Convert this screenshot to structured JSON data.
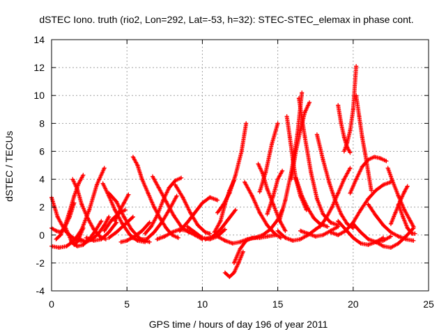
{
  "chart_data": {
    "type": "scatter",
    "title": "dSTEC Iono. truth (rio2, Lon=292, Lat=-53, h=32): STEC-STEC_elemax in phase cont.",
    "xlabel": "GPS time / hours of day 196 of year 2011",
    "ylabel": "dSTEC  / TECUs",
    "xlim": [
      0,
      25
    ],
    "ylim": [
      -4,
      14
    ],
    "x_ticks": [
      "0",
      "5",
      "10",
      "15",
      "20",
      "25"
    ],
    "y_ticks": [
      "-4",
      "-2",
      "0",
      "2",
      "4",
      "6",
      "8",
      "10",
      "12",
      "14"
    ],
    "grid": true,
    "marker": "+",
    "color": "#ff0000",
    "arcs": [
      {
        "x": [
          0.0,
          0.4,
          0.9,
          1.4,
          1.9,
          2.3
        ],
        "y": [
          2.7,
          1.3,
          0.3,
          -0.2,
          -0.4,
          -0.5
        ]
      },
      {
        "x": [
          0.0,
          0.5,
          1.0,
          1.5,
          2.0,
          2.5,
          3.0,
          3.5
        ],
        "y": [
          -0.8,
          -0.9,
          -0.8,
          -0.4,
          0.4,
          1.8,
          3.6,
          4.8
        ]
      },
      {
        "x": [
          0.0,
          0.3,
          0.6,
          0.9,
          1.2,
          1.5
        ],
        "y": [
          0.5,
          0.3,
          0.2,
          0.6,
          1.3,
          2.3
        ]
      },
      {
        "x": [
          0.3,
          0.6,
          0.9,
          1.2,
          1.5,
          1.8,
          2.1
        ],
        "y": [
          -0.3,
          0.0,
          0.7,
          1.7,
          2.8,
          3.7,
          4.3
        ]
      },
      {
        "x": [
          1.4,
          1.7,
          2.0,
          2.4,
          2.8,
          3.2,
          3.6
        ],
        "y": [
          4.0,
          3.3,
          2.2,
          1.2,
          0.4,
          -0.1,
          -0.3
        ]
      },
      {
        "x": [
          0.9,
          1.1,
          1.3,
          1.5,
          1.7,
          1.9,
          2.1
        ],
        "y": [
          0.6,
          0.1,
          -0.4,
          -0.7,
          -0.5,
          0.0,
          0.5
        ]
      },
      {
        "x": [
          1.9,
          2.3,
          2.7,
          3.1,
          3.5,
          3.8
        ],
        "y": [
          -0.3,
          -0.5,
          -0.3,
          0.1,
          0.7,
          1.3
        ]
      },
      {
        "x": [
          1.3,
          1.7,
          2.1,
          2.5,
          2.9,
          3.3
        ],
        "y": [
          -0.5,
          -0.8,
          -0.7,
          -0.3,
          0.3,
          1.0
        ]
      },
      {
        "x": [
          2.3,
          2.8,
          3.3,
          3.8,
          4.3
        ],
        "y": [
          -0.2,
          -0.4,
          -0.3,
          0.2,
          0.9
        ]
      },
      {
        "x": [
          3.4,
          3.8,
          4.2,
          4.7,
          5.2,
          5.7,
          6.2
        ],
        "y": [
          3.7,
          2.8,
          1.8,
          0.8,
          0.0,
          -0.4,
          -0.5
        ]
      },
      {
        "x": [
          3.5,
          4.0,
          4.5,
          4.9
        ],
        "y": [
          0.3,
          1.1,
          1.6,
          1.8
        ]
      },
      {
        "x": [
          3.8,
          4.3,
          4.8,
          5.3,
          5.9,
          6.5
        ],
        "y": [
          3.0,
          2.4,
          1.3,
          0.4,
          -0.3,
          -0.5
        ]
      },
      {
        "x": [
          3.8,
          4.3,
          4.8,
          5.4
        ],
        "y": [
          -0.2,
          0.2,
          0.7,
          1.3
        ]
      },
      {
        "x": [
          4.2,
          4.5,
          4.8,
          5.1
        ],
        "y": [
          1.0,
          1.7,
          2.3,
          2.9
        ]
      },
      {
        "x": [
          4.6,
          5.0,
          5.5,
          6.0,
          6.5
        ],
        "y": [
          -0.5,
          -0.4,
          -0.1,
          0.3,
          0.9
        ]
      },
      {
        "x": [
          5.4,
          5.7,
          6.0,
          6.4,
          6.8,
          7.2,
          7.6,
          8.0,
          8.4
        ],
        "y": [
          5.6,
          5.0,
          4.0,
          3.0,
          2.0,
          1.2,
          0.5,
          0.0,
          -0.2
        ]
      },
      {
        "x": [
          5.3,
          5.8,
          6.3,
          6.8,
          7.3,
          7.8,
          8.3
        ],
        "y": [
          -0.2,
          -0.3,
          -0.3,
          0.2,
          0.9,
          1.8,
          2.8
        ]
      },
      {
        "x": [
          6.2,
          6.6,
          7.0,
          7.4,
          7.8,
          8.2,
          8.6
        ],
        "y": [
          0.1,
          0.6,
          1.4,
          2.5,
          3.4,
          3.9,
          4.1
        ]
      },
      {
        "x": [
          6.7,
          7.1,
          7.6,
          8.1,
          8.6,
          9.1,
          9.6
        ],
        "y": [
          4.2,
          3.4,
          2.4,
          1.4,
          0.6,
          0.2,
          0.1
        ]
      },
      {
        "x": [
          8.2,
          8.7,
          9.2,
          9.7,
          10.2,
          10.5
        ],
        "y": [
          3.6,
          2.7,
          1.6,
          0.7,
          0.2,
          0.1
        ]
      },
      {
        "x": [
          7.0,
          7.5,
          8.0,
          8.5,
          9.0,
          9.5,
          10.0
        ],
        "y": [
          -0.3,
          -0.1,
          0.2,
          0.4,
          0.3,
          0.0,
          -0.3
        ]
      },
      {
        "x": [
          8.5,
          9.0,
          9.5,
          10.0,
          10.5,
          11.0
        ],
        "y": [
          0.3,
          0.9,
          1.6,
          2.3,
          2.7,
          2.5
        ]
      },
      {
        "x": [
          9.0,
          9.5,
          10.0,
          10.5,
          11.0,
          11.5
        ],
        "y": [
          0.6,
          0.2,
          -0.2,
          -0.3,
          -0.1,
          0.4
        ]
      },
      {
        "x": [
          10.2,
          10.7,
          11.2,
          11.7,
          12.2
        ],
        "y": [
          -0.3,
          -0.1,
          0.4,
          1.1,
          1.8
        ]
      },
      {
        "x": [
          11.0,
          11.4,
          11.8,
          12.2,
          12.6,
          12.9
        ],
        "y": [
          1.6,
          2.2,
          3.0,
          4.3,
          6.0,
          8.0
        ]
      },
      {
        "x": [
          10.8,
          11.2,
          11.5,
          11.8,
          12.1
        ],
        "y": [
          0.2,
          1.0,
          2.2,
          3.2,
          3.9
        ]
      },
      {
        "x": [
          11.5,
          11.8,
          12.1,
          12.4,
          12.7
        ],
        "y": [
          -2.7,
          -3.0,
          -2.7,
          -2.0,
          -1.2
        ]
      },
      {
        "x": [
          12.1,
          12.5,
          12.9,
          13.3,
          13.8,
          14.3,
          14.9
        ],
        "y": [
          -2.0,
          -1.0,
          -0.4,
          -0.2,
          -0.2,
          -0.1,
          0.0
        ]
      },
      {
        "x": [
          11.0,
          11.5,
          12.0,
          12.5,
          13.0,
          13.5,
          14.0,
          14.5,
          15.0,
          15.3
        ],
        "y": [
          -0.1,
          -0.4,
          -0.6,
          -0.5,
          -0.3,
          -0.2,
          0.0,
          0.4,
          1.1,
          1.8
        ]
      },
      {
        "x": [
          12.8,
          13.3,
          13.8,
          14.3,
          14.8,
          15.2
        ],
        "y": [
          3.8,
          2.8,
          1.6,
          0.7,
          0.1,
          -0.2
        ]
      },
      {
        "x": [
          13.7,
          14.0,
          14.3,
          14.7,
          15.1,
          15.5
        ],
        "y": [
          5.1,
          4.4,
          3.3,
          2.2,
          1.1,
          0.3
        ]
      },
      {
        "x": [
          13.8,
          14.2,
          14.6,
          15.0
        ],
        "y": [
          3.1,
          4.5,
          6.5,
          8.0
        ]
      },
      {
        "x": [
          14.3,
          14.7,
          15.0,
          15.3
        ],
        "y": [
          1.5,
          2.8,
          4.0,
          4.6
        ]
      },
      {
        "x": [
          15.6,
          15.8,
          16.0,
          16.2,
          16.5,
          16.9
        ],
        "y": [
          8.5,
          7.0,
          5.4,
          4.0,
          2.8,
          1.8
        ]
      },
      {
        "x": [
          15.1,
          15.5,
          15.9,
          16.3,
          16.6
        ],
        "y": [
          1.0,
          2.5,
          4.5,
          7.2,
          10.2
        ]
      },
      {
        "x": [
          15.9,
          16.2,
          16.5,
          16.8,
          17.1
        ],
        "y": [
          4.0,
          6.0,
          7.5,
          8.8,
          9.5
        ]
      },
      {
        "x": [
          16.2,
          16.6,
          17.0,
          17.4,
          17.8,
          18.3
        ],
        "y": [
          4.1,
          2.8,
          1.9,
          1.2,
          0.8,
          0.6
        ]
      },
      {
        "x": [
          15.0,
          15.5,
          16.0,
          16.5,
          17.0,
          17.5,
          18.0
        ],
        "y": [
          0.3,
          -0.2,
          -0.4,
          -0.3,
          0.0,
          0.4,
          0.8
        ]
      },
      {
        "x": [
          16.4,
          16.8,
          17.2,
          17.6,
          18.0,
          18.5,
          19.0
        ],
        "y": [
          9.8,
          7.0,
          4.5,
          2.6,
          1.5,
          0.9,
          0.7
        ]
      },
      {
        "x": [
          17.6,
          18.0,
          18.4,
          18.8,
          19.2,
          19.6,
          20.0
        ],
        "y": [
          7.2,
          5.4,
          3.8,
          2.5,
          1.5,
          0.8,
          0.5
        ]
      },
      {
        "x": [
          17.8,
          18.2,
          18.6,
          19.0,
          19.4,
          19.8
        ],
        "y": [
          0.6,
          1.2,
          2.0,
          3.0,
          4.0,
          4.8
        ]
      },
      {
        "x": [
          16.5,
          17.0,
          17.5,
          18.0,
          18.5,
          19.0
        ],
        "y": [
          0.3,
          0.1,
          -0.1,
          0.0,
          0.3,
          0.6
        ]
      },
      {
        "x": [
          19.0,
          19.2,
          19.4,
          19.6,
          19.8
        ],
        "y": [
          9.3,
          8.0,
          7.0,
          6.3,
          5.9
        ]
      },
      {
        "x": [
          19.4,
          19.6,
          19.8,
          20.0,
          20.2
        ],
        "y": [
          6.0,
          6.6,
          7.5,
          9.0,
          12.1
        ]
      },
      {
        "x": [
          20.2,
          20.4,
          20.6,
          20.8,
          21.0,
          21.2
        ],
        "y": [
          10.0,
          8.5,
          7.0,
          5.8,
          4.5,
          3.2
        ]
      },
      {
        "x": [
          19.8,
          20.2,
          20.6,
          21.0,
          21.4,
          21.8,
          22.2
        ],
        "y": [
          3.0,
          4.0,
          4.9,
          5.4,
          5.6,
          5.5,
          5.3
        ]
      },
      {
        "x": [
          18.5,
          19.0,
          19.5,
          20.0,
          20.5,
          21.0,
          21.5,
          22.0,
          22.5
        ],
        "y": [
          0.2,
          0.0,
          0.3,
          0.9,
          1.8,
          2.6,
          3.2,
          3.6,
          3.8
        ]
      },
      {
        "x": [
          19.0,
          19.5,
          20.0,
          20.5,
          21.0,
          21.5,
          22.0
        ],
        "y": [
          1.0,
          0.4,
          -0.2,
          -0.6,
          -0.7,
          -0.5,
          -0.2
        ]
      },
      {
        "x": [
          20.0,
          20.5,
          21.0,
          21.5,
          22.0,
          22.5
        ],
        "y": [
          0.8,
          0.2,
          -0.3,
          -0.5,
          -0.4,
          -0.1
        ]
      },
      {
        "x": [
          21.0,
          21.5,
          22.0,
          22.5,
          23.0,
          23.5,
          24.0
        ],
        "y": [
          2.2,
          1.4,
          0.7,
          0.2,
          -0.1,
          -0.3,
          -0.4
        ]
      },
      {
        "x": [
          22.3,
          22.6,
          23.0,
          23.4,
          23.8,
          24.0
        ],
        "y": [
          4.8,
          3.9,
          2.8,
          1.8,
          1.0,
          0.6
        ]
      },
      {
        "x": [
          21.5,
          22.0,
          22.5,
          23.0,
          23.5,
          24.0
        ],
        "y": [
          -0.5,
          -0.8,
          -0.9,
          -0.6,
          -0.1,
          0.5
        ]
      },
      {
        "x": [
          22.5,
          22.8,
          23.1,
          23.4,
          23.6
        ],
        "y": [
          0.8,
          1.6,
          2.4,
          3.1,
          3.5
        ]
      },
      {
        "x": [
          23.0,
          23.3,
          23.6,
          23.9,
          24.1
        ],
        "y": [
          2.2,
          1.3,
          0.5,
          0.1,
          0.1
        ]
      }
    ]
  }
}
